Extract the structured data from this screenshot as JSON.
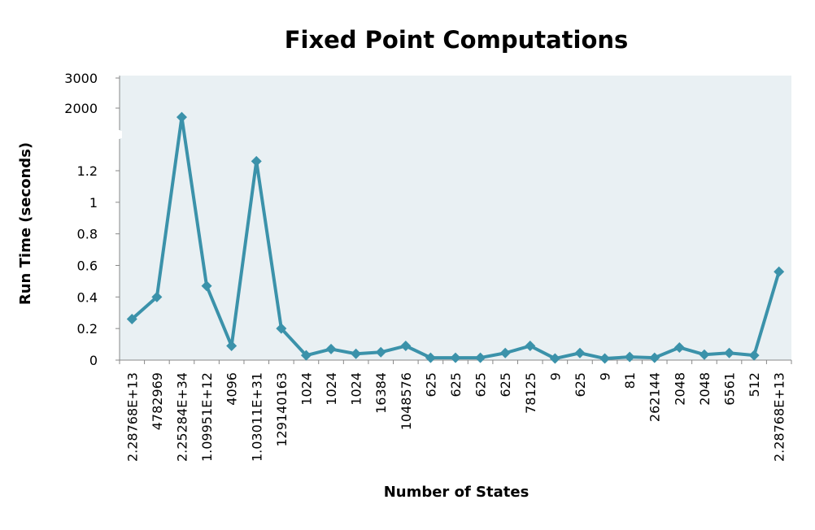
{
  "chart_data": {
    "type": "line",
    "title": "Fixed Point Computations",
    "xlabel": "Number of States",
    "ylabel": "Run Time (seconds)",
    "axis": "broken",
    "upper_ticks": [
      "3000",
      "2000"
    ],
    "lower_ticks": [
      "0",
      "0.2",
      "0.4",
      "0.6",
      "0.8",
      "1",
      "1.2"
    ],
    "lower_ylim": [
      0,
      1.4
    ],
    "upper_ylim": [
      1000,
      3000
    ],
    "colors": {
      "line": "#3b92aa",
      "plot_bg": "#e9f0f3",
      "axis": "#888888"
    },
    "categories": [
      "2.28768E+13",
      "4782969",
      "2.25284E+34",
      "1.09951E+12",
      "4096",
      "1.03011E+31",
      "129140163",
      "1024",
      "1024",
      "1024",
      "16384",
      "1048576",
      "625",
      "625",
      "625",
      "625",
      "78125",
      "9",
      "625",
      "9",
      "81",
      "262144",
      "2048",
      "2048",
      "6561",
      "512",
      "2.28768E+13"
    ],
    "values": [
      0.26,
      0.4,
      1700,
      0.47,
      0.09,
      1.26,
      0.2,
      0.03,
      0.07,
      0.04,
      0.05,
      0.09,
      0.015,
      0.015,
      0.015,
      0.045,
      0.09,
      0.01,
      0.045,
      0.01,
      0.02,
      0.015,
      0.08,
      0.035,
      0.045,
      0.03,
      0.56
    ]
  }
}
